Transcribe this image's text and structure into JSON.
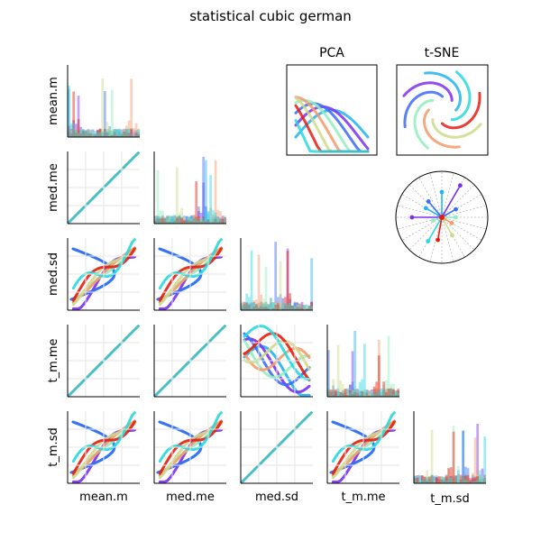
{
  "figure": {
    "title": "statistical cubic german",
    "pca_title": "PCA",
    "tsne_title": "t-SNE"
  },
  "palette": [
    "#22b3f0",
    "#7a2ff0",
    "#3a6cf5",
    "#8fefc0",
    "#f59a6a",
    "#cfd98a",
    "#e81c10",
    "#28d8e0"
  ],
  "chart_data": {
    "type": "scatter",
    "variables": [
      "mean.m",
      "med.me",
      "med.sd",
      "t_m.me",
      "t_m.sd"
    ],
    "n_groups": 8,
    "diagonal": "histogram",
    "lower_triangle": "scatter",
    "extra_panels": [
      "PCA",
      "t-SNE",
      "radial"
    ],
    "grid": true,
    "radial_spokes": [
      {
        "angle": 90,
        "length": 0.55
      },
      {
        "angle": 60,
        "length": 0.8
      },
      {
        "angle": 30,
        "length": 0.35
      },
      {
        "angle": 0,
        "length": 0.3
      },
      {
        "angle": -30,
        "length": 0.25
      },
      {
        "angle": -60,
        "length": 0.45
      },
      {
        "angle": -100,
        "length": 0.5
      },
      {
        "angle": -120,
        "length": 0.6
      },
      {
        "angle": 150,
        "length": 0.4
      },
      {
        "angle": 180,
        "length": 0.65
      },
      {
        "angle": 130,
        "length": 0.45
      },
      {
        "angle": 200,
        "length": 0.2
      }
    ]
  }
}
